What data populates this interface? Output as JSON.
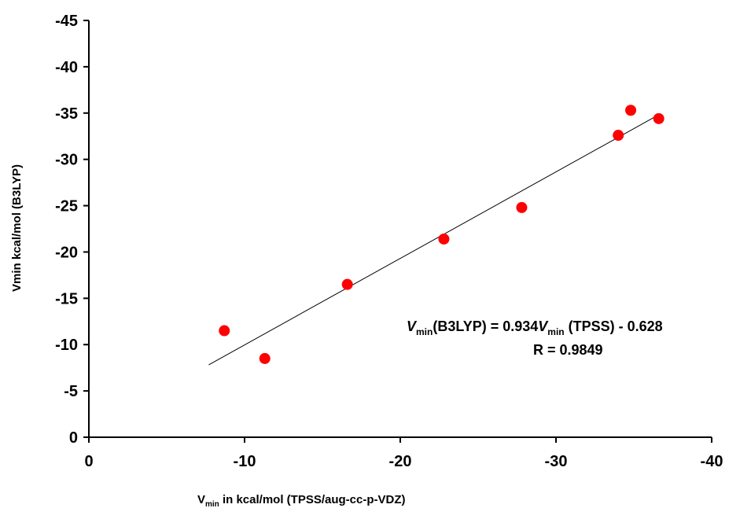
{
  "chart_data": {
    "type": "scatter",
    "xlabel": {
      "prefix": "V",
      "sub": "min",
      "suffix": " in kcal/mol (TPSS/aug-cc-p-VDZ)"
    },
    "ylabel": "Vmin kcal/mol  (B3LYP)",
    "xlim": [
      0,
      -40
    ],
    "ylim": [
      0,
      -45
    ],
    "x_ticks": [
      0,
      -10,
      -20,
      -30,
      -40
    ],
    "y_ticks": [
      0,
      -5,
      -10,
      -15,
      -20,
      -25,
      -30,
      -35,
      -40,
      -45
    ],
    "series": [
      {
        "marker_color": "#ff0000",
        "points": [
          {
            "x": -8.7,
            "y": -11.5
          },
          {
            "x": -11.3,
            "y": -8.5
          },
          {
            "x": -16.6,
            "y": -16.5
          },
          {
            "x": -22.8,
            "y": -21.4
          },
          {
            "x": -27.8,
            "y": -24.8
          },
          {
            "x": -34.0,
            "y": -32.6
          },
          {
            "x": -34.8,
            "y": -35.3
          },
          {
            "x": -36.6,
            "y": -34.4
          }
        ]
      }
    ],
    "fit_line": {
      "x_start": -7.7,
      "x_end": -36.6,
      "slope": 0.934,
      "intercept": -0.628,
      "color": "#000000"
    },
    "annotation": {
      "line1": {
        "v": "V",
        "sub": "min",
        "mid": "(B3LYP) = 0.934",
        "v2": "V",
        "sub2": "min",
        "tail": " (TPSS)  - 0.628"
      },
      "line2": "R = 0.9849"
    },
    "grid": false
  }
}
